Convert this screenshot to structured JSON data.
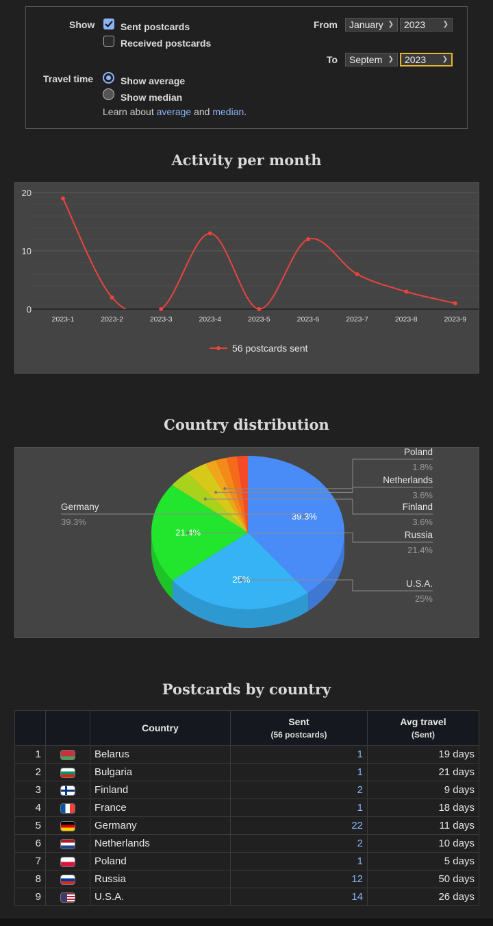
{
  "filters": {
    "show_label": "Show",
    "sent_label": "Sent postcards",
    "sent_checked": true,
    "received_label": "Received postcards",
    "received_checked": false,
    "travel_label": "Travel time",
    "avg_label": "Show average",
    "median_label": "Show median",
    "learn_prefix": "Learn about ",
    "learn_avg": "average",
    "learn_and": " and ",
    "learn_median": "median",
    "learn_suffix": ".",
    "from_label": "From",
    "to_label": "To",
    "from_month": "January",
    "from_year": "2023",
    "to_month": "Septem",
    "to_year": "2023"
  },
  "activity_title": "Activity per month",
  "distribution_title": "Country distribution",
  "table_title": "Postcards by country",
  "colors": {
    "line": "#e8453c",
    "accent": "#8ab4f8",
    "focus": "#e7b530"
  },
  "chart_data": [
    {
      "type": "line",
      "title": "Activity per month",
      "x": [
        "2023-1",
        "2023-2",
        "2023-3",
        "2023-4",
        "2023-5",
        "2023-6",
        "2023-7",
        "2023-8",
        "2023-9"
      ],
      "series": [
        {
          "name": "56 postcards sent",
          "values": [
            19,
            2,
            0,
            13,
            0,
            12,
            6,
            3,
            1
          ]
        }
      ],
      "ylim": [
        0,
        20
      ],
      "yticks": [
        "0",
        "10",
        "20"
      ],
      "grid": true,
      "legend": "bottom"
    },
    {
      "type": "pie",
      "title": "Country distribution",
      "slices": [
        {
          "label": "Germany",
          "value": 39.3,
          "pct": "39.3%",
          "color": "#4a8cf7"
        },
        {
          "label": "U.S.A.",
          "value": 25,
          "pct": "25%",
          "color": "#36b3f5"
        },
        {
          "label": "Russia",
          "value": 21.4,
          "pct": "21.4%",
          "color": "#22e52e"
        },
        {
          "label": "Finland",
          "value": 3.6,
          "pct": "3.6%",
          "color": "#a8d21c"
        },
        {
          "label": "Netherlands",
          "value": 3.6,
          "pct": "3.6%",
          "color": "#d8c81a"
        },
        {
          "label": "Poland",
          "value": 1.8,
          "pct": "1.8%",
          "color": "#f2a51b"
        },
        {
          "label": "",
          "value": 1.8,
          "pct": "",
          "color": "#f58a18"
        },
        {
          "label": "",
          "value": 1.8,
          "pct": "",
          "color": "#f76a1c"
        },
        {
          "label": "",
          "value": 1.8,
          "pct": "",
          "color": "#f54a2a"
        }
      ]
    }
  ],
  "table": {
    "headers": {
      "country": "Country",
      "sent": "Sent",
      "sent_sub": "(56 postcards)",
      "avg": "Avg travel",
      "avg_sub": "(Sent)"
    },
    "rows": [
      {
        "n": "1",
        "country": "Belarus",
        "sent": "1",
        "avg": "19 days",
        "flag": [
          "#c8313e",
          "#c8313e",
          "#4aa657"
        ]
      },
      {
        "n": "2",
        "country": "Bulgaria",
        "sent": "1",
        "avg": "21 days",
        "flag": [
          "#ffffff",
          "#00966e",
          "#d62612"
        ]
      },
      {
        "n": "3",
        "country": "Finland",
        "sent": "2",
        "avg": "9 days",
        "flag": [
          "finland"
        ]
      },
      {
        "n": "4",
        "country": "France",
        "sent": "1",
        "avg": "18 days",
        "flag": [
          "france"
        ]
      },
      {
        "n": "5",
        "country": "Germany",
        "sent": "22",
        "avg": "11 days",
        "flag": [
          "#000000",
          "#dd0000",
          "#ffce00"
        ]
      },
      {
        "n": "6",
        "country": "Netherlands",
        "sent": "2",
        "avg": "10 days",
        "flag": [
          "#ae1c28",
          "#ffffff",
          "#21468b"
        ]
      },
      {
        "n": "7",
        "country": "Poland",
        "sent": "1",
        "avg": "5 days",
        "flag": [
          "#ffffff",
          "#dc143c"
        ]
      },
      {
        "n": "8",
        "country": "Russia",
        "sent": "12",
        "avg": "50 days",
        "flag": [
          "#ffffff",
          "#0039a6",
          "#d52b1e"
        ]
      },
      {
        "n": "9",
        "country": "U.S.A.",
        "sent": "14",
        "avg": "26 days",
        "flag": [
          "usa"
        ]
      }
    ]
  }
}
